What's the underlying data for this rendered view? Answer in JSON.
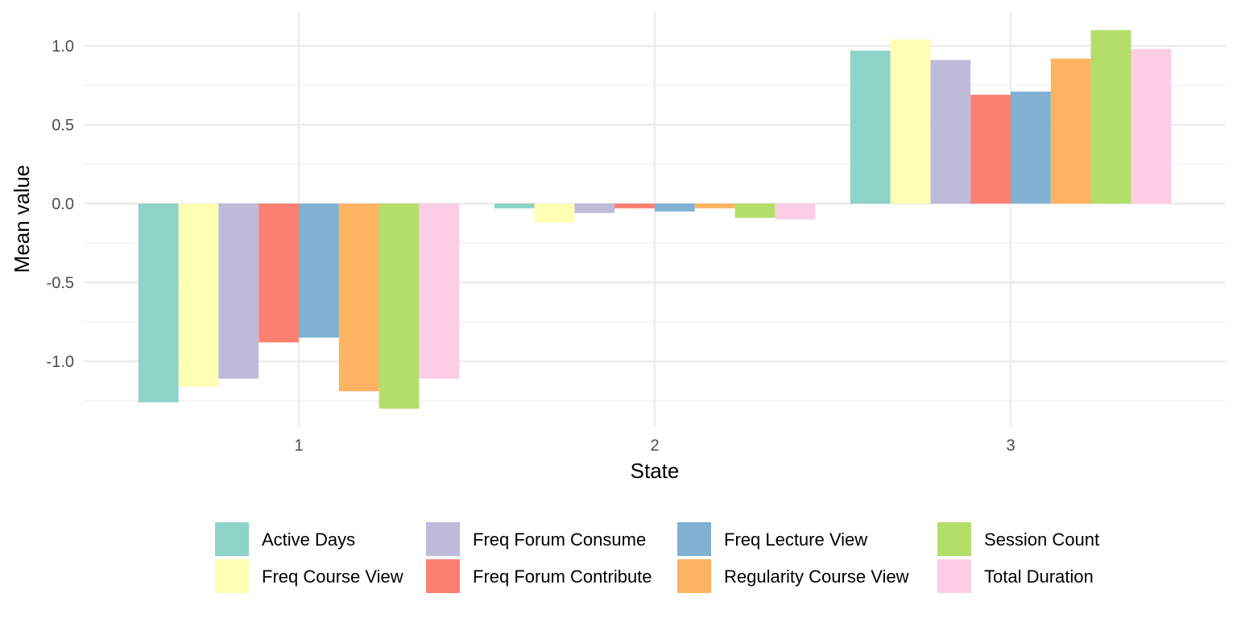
{
  "chart_data": {
    "type": "bar",
    "categories": [
      "1",
      "2",
      "3"
    ],
    "xlabel": "State",
    "ylabel": "Mean value",
    "ylim": [
      -1.3,
      1.2
    ],
    "yticks": [
      -1.0,
      -0.5,
      0.0,
      0.5,
      1.0
    ],
    "ytick_labels": [
      "-1.0",
      "-0.5",
      "0.0",
      "0.5",
      "1.0"
    ],
    "grid": true,
    "legend_position": "bottom",
    "series": [
      {
        "name": "Active Days",
        "color": "#8DD3C7",
        "values": [
          -1.26,
          -0.03,
          0.97
        ]
      },
      {
        "name": "Freq Course View",
        "color": "#FFFFB3",
        "values": [
          -1.16,
          -0.12,
          1.04
        ]
      },
      {
        "name": "Freq Forum Consume",
        "color": "#BEBADA",
        "values": [
          -1.11,
          -0.06,
          0.91
        ]
      },
      {
        "name": "Freq Forum Contribute",
        "color": "#FB8072",
        "values": [
          -0.88,
          -0.03,
          0.69
        ]
      },
      {
        "name": "Freq Lecture View",
        "color": "#80B1D3",
        "values": [
          -0.85,
          -0.05,
          0.71
        ]
      },
      {
        "name": "Regularity Course View",
        "color": "#FDB462",
        "values": [
          -1.19,
          -0.03,
          0.92
        ]
      },
      {
        "name": "Session Count",
        "color": "#B3DE69",
        "values": [
          -1.3,
          -0.09,
          1.1
        ]
      },
      {
        "name": "Total Duration",
        "color": "#FCCDE5",
        "values": [
          -1.11,
          -0.1,
          0.98
        ]
      }
    ]
  }
}
